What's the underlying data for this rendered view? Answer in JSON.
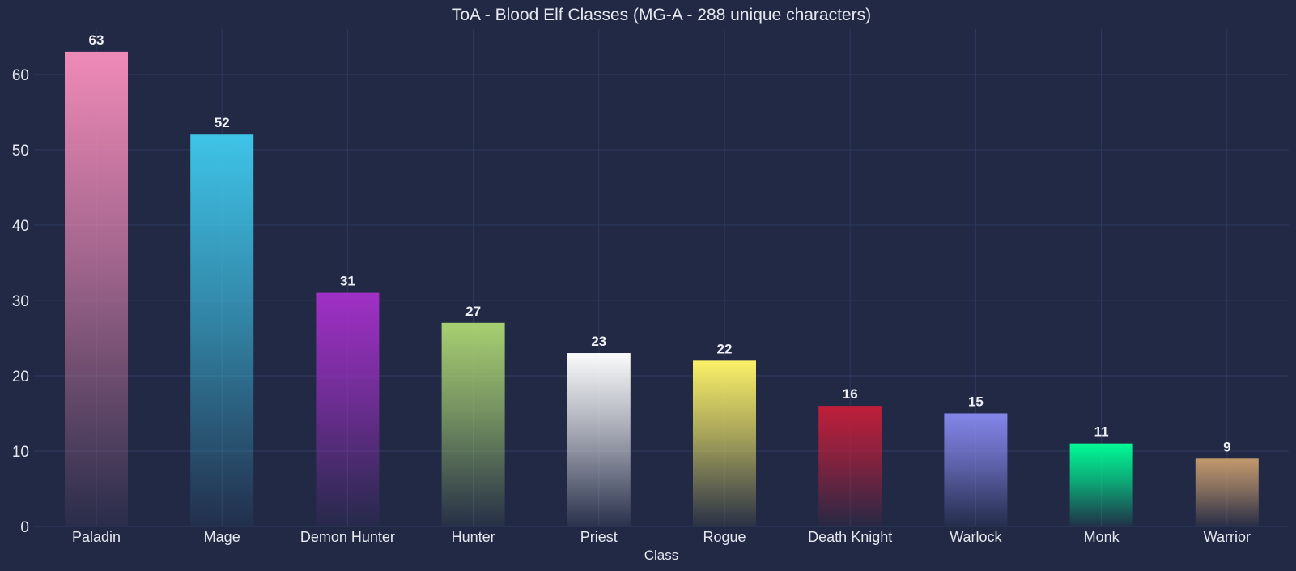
{
  "chart_data": {
    "type": "bar",
    "title": "ToA - Blood Elf Classes (MG-A - 288 unique characters)",
    "xlabel": "Class",
    "ylabel": "",
    "ylim": [
      0,
      66
    ],
    "yticks": [
      0,
      10,
      20,
      30,
      40,
      50,
      60
    ],
    "grid": true,
    "categories": [
      "Paladin",
      "Mage",
      "Demon Hunter",
      "Hunter",
      "Priest",
      "Rogue",
      "Death Knight",
      "Warlock",
      "Monk",
      "Warrior"
    ],
    "values": [
      63,
      52,
      31,
      27,
      23,
      22,
      16,
      15,
      11,
      9
    ],
    "data_labels": [
      "63",
      "52",
      "31",
      "27",
      "23",
      "22",
      "16",
      "15",
      "11",
      "9"
    ],
    "colors": [
      "#f48cba",
      "#3fc7eb",
      "#a330c9",
      "#aad372",
      "#ffffff",
      "#fff468",
      "#c41e3a",
      "#8788ee",
      "#00ff98",
      "#c69b6d"
    ]
  },
  "theme": {
    "background": "#212945",
    "grid_color": "#2e3a5e",
    "text_color": "#e6e8f0"
  }
}
